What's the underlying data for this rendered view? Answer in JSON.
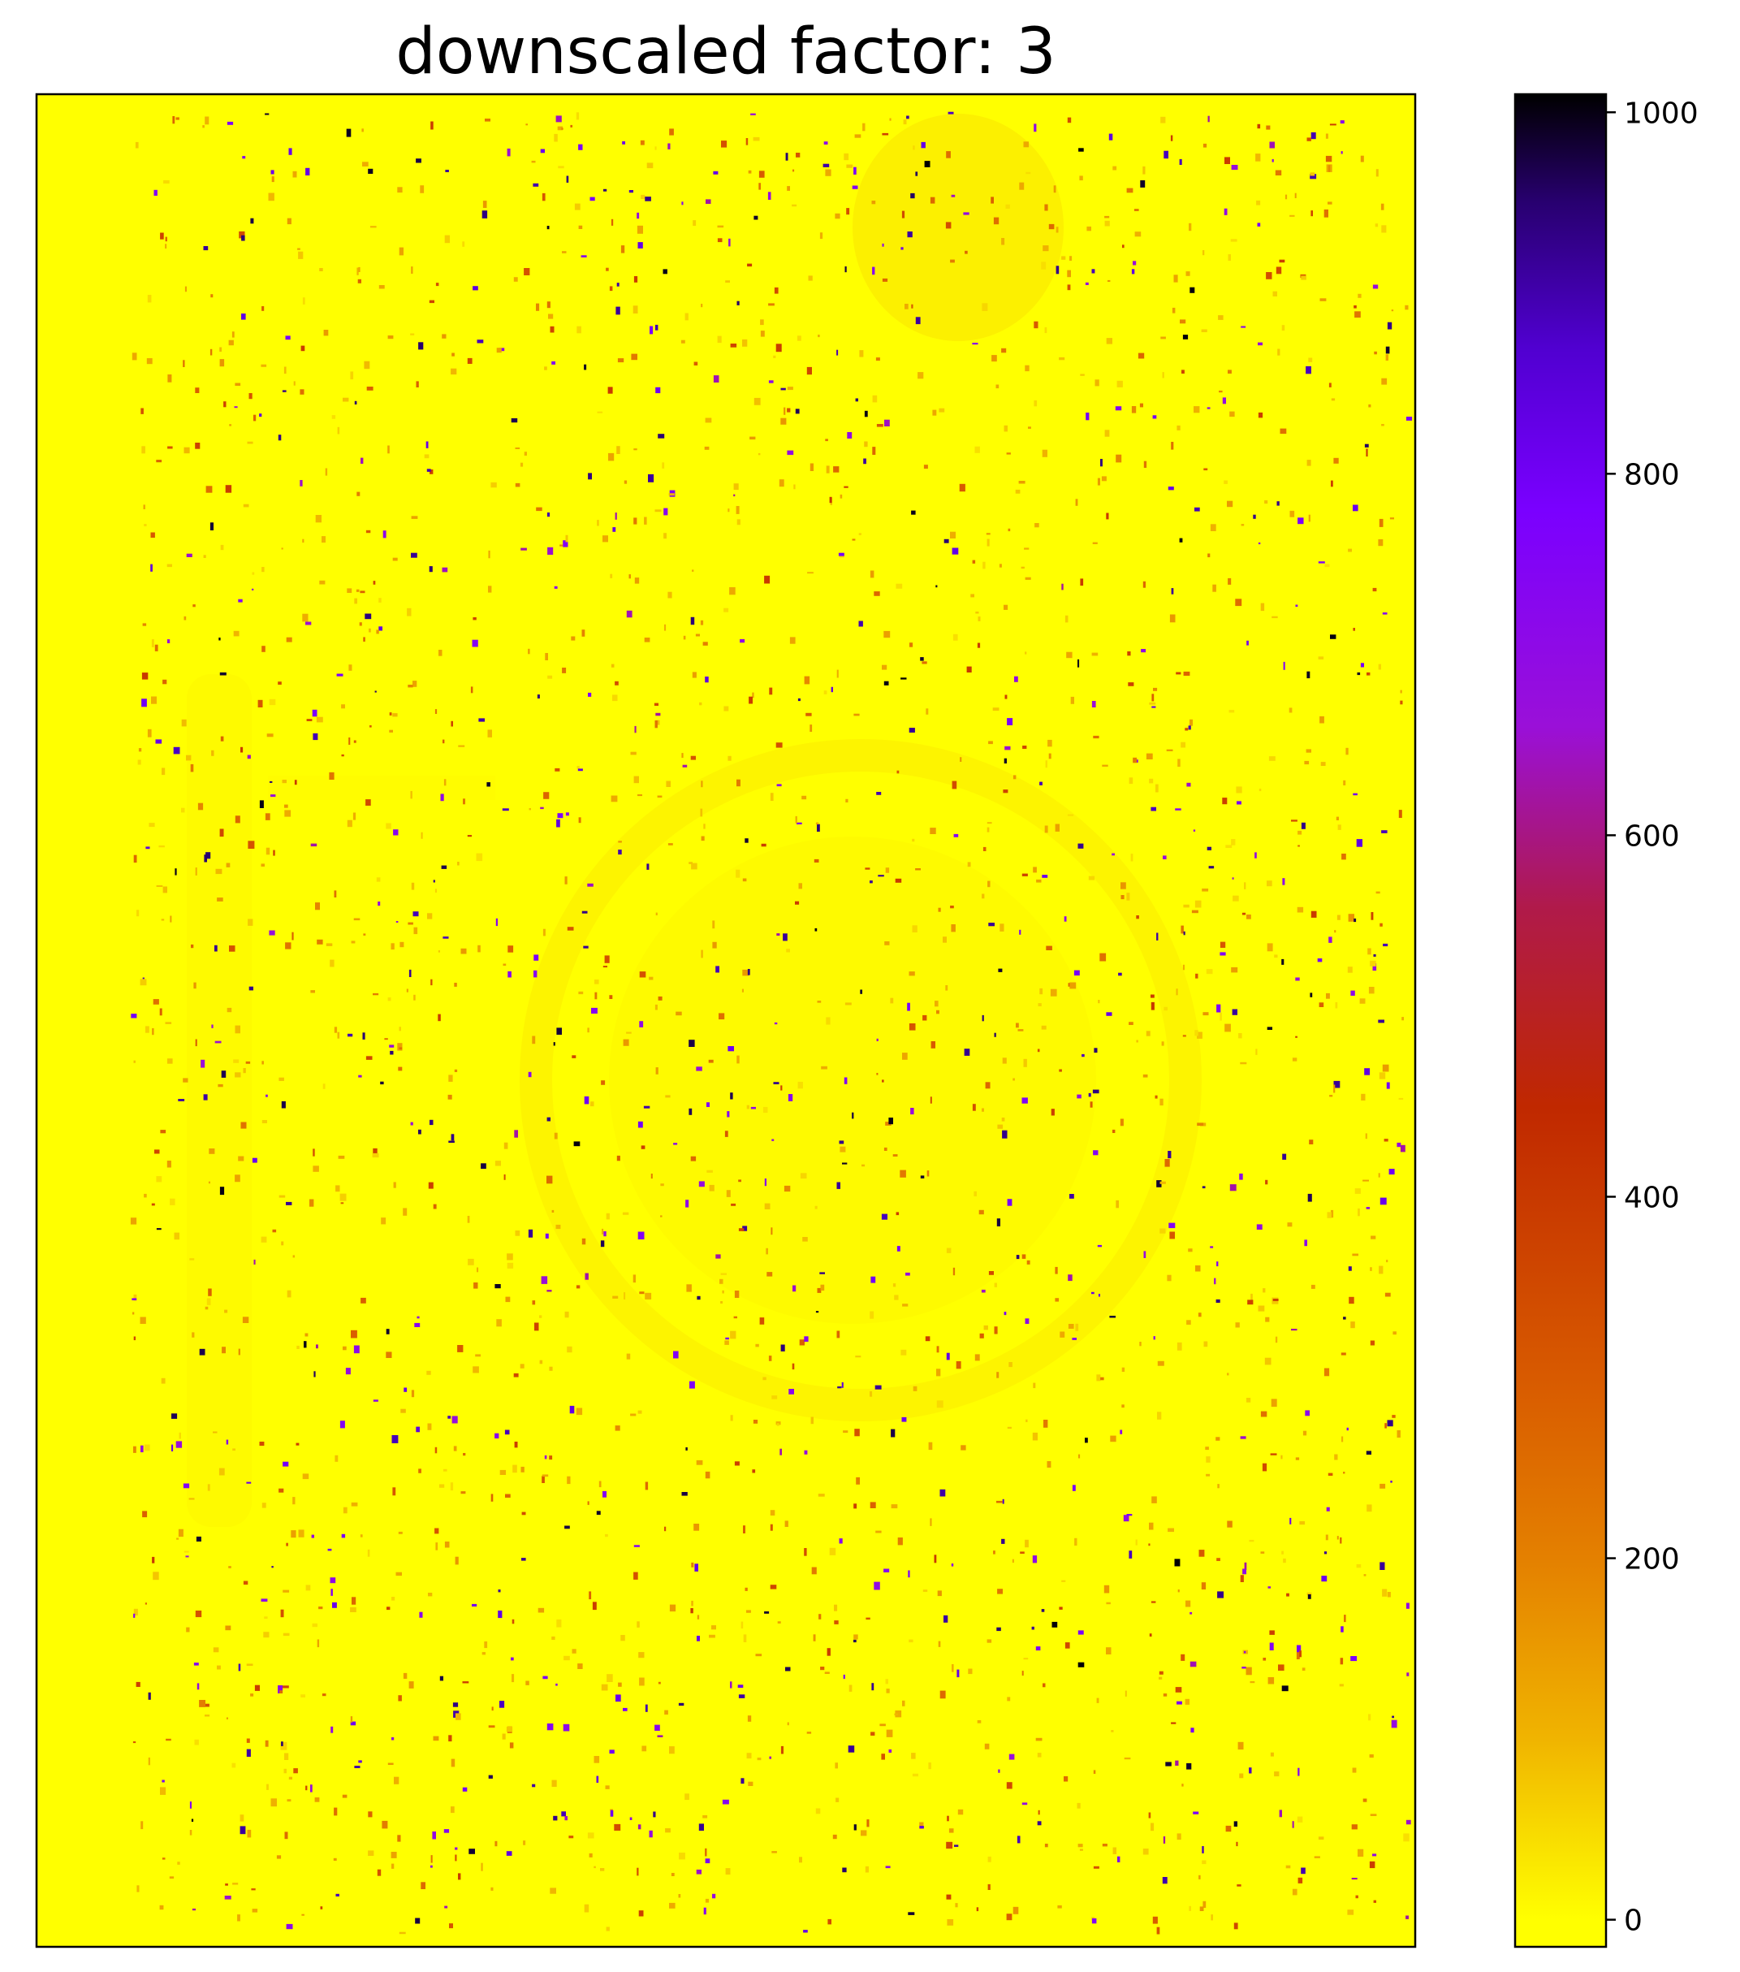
{
  "chart_data": {
    "type": "heatmap",
    "title": "downscaled factor: 3",
    "xlabel": "",
    "ylabel": "",
    "x_ticks": [],
    "y_ticks": [],
    "colormap": "gnuplot2_r",
    "colorbar": {
      "min": -15,
      "max": 1010,
      "ticks": [
        0,
        200,
        400,
        600,
        800,
        1000
      ],
      "tick_labels": [
        "0",
        "200",
        "400",
        "600",
        "800",
        "1000"
      ],
      "color_stops": [
        {
          "value": 0,
          "color": "#ffff00"
        },
        {
          "value": 100,
          "color": "#f0b400"
        },
        {
          "value": 200,
          "color": "#e48000"
        },
        {
          "value": 300,
          "color": "#d85a00"
        },
        {
          "value": 450,
          "color": "#c02800"
        },
        {
          "value": 560,
          "color": "#b01a4a"
        },
        {
          "value": 660,
          "color": "#9a10d8"
        },
        {
          "value": 780,
          "color": "#7a00ff"
        },
        {
          "value": 870,
          "color": "#5000d0"
        },
        {
          "value": 950,
          "color": "#280070"
        },
        {
          "value": 1010,
          "color": "#000000"
        }
      ]
    },
    "background_value": 0,
    "description_of_field": "mostly near-zero values with sparse speckles of higher values"
  }
}
